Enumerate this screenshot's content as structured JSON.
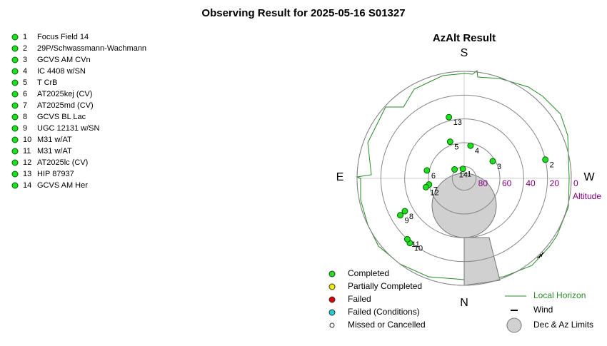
{
  "chart_data": {
    "type": "polar",
    "title": "Observing Result for 2025-05-16 S01327",
    "subtitle": "AzAlt Result",
    "directions": {
      "S": "S",
      "W": "W",
      "N": "N",
      "E": "E"
    },
    "radial_label": "Altitude",
    "rlim": [
      90,
      0
    ],
    "rticks": [
      80,
      60,
      40,
      20,
      0
    ],
    "labels": [
      1,
      2,
      3,
      4,
      5,
      6,
      7,
      8,
      9,
      10,
      11,
      12,
      13,
      14
    ],
    "names": [
      "Focus Field 14",
      "29P/Schwassmann-Wachmann",
      "GCVS AM CVn",
      "IC 4408 w/SN",
      "T CrB",
      "AT2025kej (CV)",
      "AT2025md (CV)",
      "GCVS BL Lac",
      "UGC 12131 w/SN",
      "M31 w/AT",
      "M31 w/AT",
      "AT2025lc (CV)",
      "HIP 87937",
      "GCVS AM Her"
    ],
    "az": [
      172,
      257,
      239,
      191,
      159,
      102,
      80,
      61,
      60,
      40,
      43,
      77,
      166,
      133
    ],
    "alt": [
      82,
      20,
      62,
      62,
      57,
      58,
      60,
      33,
      28,
      19,
      20,
      57,
      37,
      79
    ],
    "color": "#22dd22",
    "status_legend": [
      {
        "name": "Completed",
        "color": "#22dd22"
      },
      {
        "name": "Partially Completed",
        "color": "#eeee00"
      },
      {
        "name": "Failed",
        "color": "#dd0000"
      },
      {
        "name": "Failed (Conditions)",
        "color": "#22cccc"
      },
      {
        "name": "Missed or Cancelled",
        "color": "#ffffff"
      }
    ],
    "extra_legend": [
      "Local Horizon",
      "Wind",
      "Dec & Az Limits"
    ]
  }
}
